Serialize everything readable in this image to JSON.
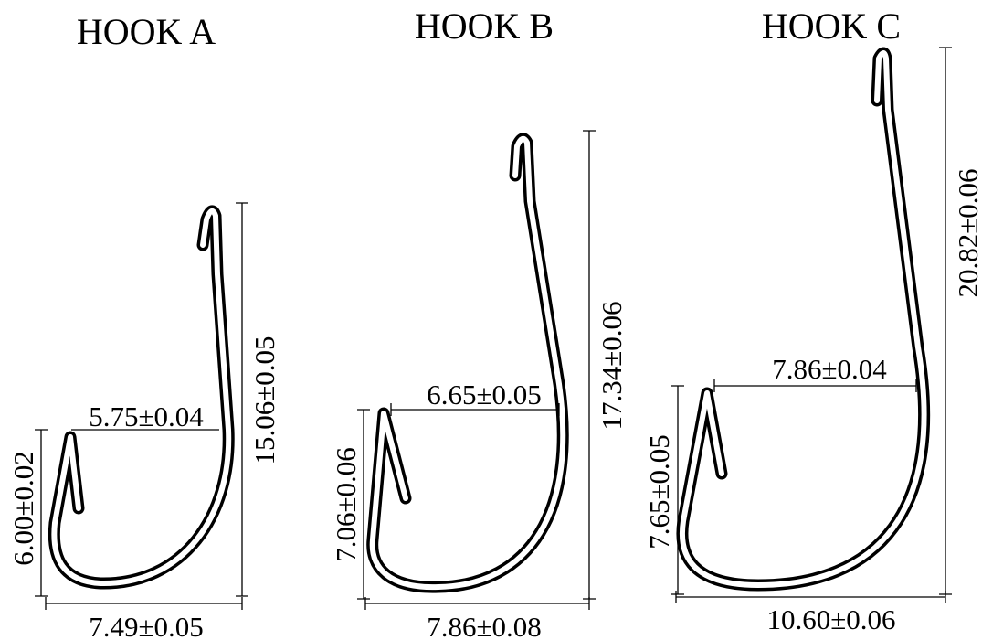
{
  "hooks": [
    {
      "title": "HOOK A",
      "gap": "5.75±0.04",
      "height": "15.06±0.05",
      "point_height": "6.00±0.02",
      "width": "7.49±0.05"
    },
    {
      "title": "HOOK B",
      "gap": "6.65±0.05",
      "height": "17.34±0.06",
      "point_height": "7.06±0.06",
      "width": "7.86±0.08"
    },
    {
      "title": "HOOK C",
      "gap": "7.86±0.04",
      "height": "20.82±0.06",
      "point_height": "7.65±0.05",
      "width": "10.60±0.06"
    }
  ]
}
